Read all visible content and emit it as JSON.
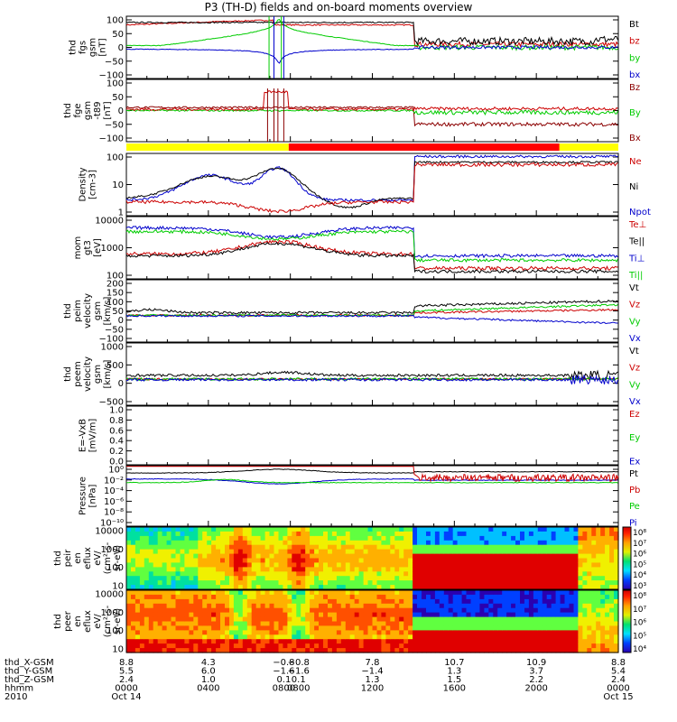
{
  "title": "P3 (TH-D) fields and on-board moments overview",
  "chart_data": [
    {
      "type": "line",
      "ylabel": [
        "thd",
        "fgs",
        "gsm",
        "[nT]"
      ],
      "yticks": [
        "100",
        "50",
        "0",
        "−50",
        "−100"
      ],
      "ylim": [
        -100,
        100
      ],
      "series": [
        {
          "name": "Bt",
          "color": "#000000"
        },
        {
          "name": "bz",
          "color": "#cc0000"
        },
        {
          "name": "by",
          "color": "#00cc00"
        },
        {
          "name": "bx",
          "color": "#0000cc"
        }
      ]
    },
    {
      "type": "line",
      "ylabel": [
        "thd",
        "fge",
        "gsm",
        "-t89",
        "[nT]"
      ],
      "yticks": [
        "100",
        "50",
        "0",
        "−50",
        "−100"
      ],
      "ylim": [
        -120,
        100
      ],
      "series": [
        {
          "name": "Bz",
          "color": "#8b0000"
        },
        {
          "name": "By",
          "color": "#00cc00"
        },
        {
          "name": "Bx",
          "color": "#8b0000"
        }
      ]
    },
    {
      "type": "line",
      "ylabel": [
        "Density",
        "[cm-3]"
      ],
      "yticks": [
        "100",
        "10",
        "1"
      ],
      "yscale": "log",
      "series": [
        {
          "name": "Ne",
          "color": "#cc0000"
        },
        {
          "name": "Ni",
          "color": "#000000"
        },
        {
          "name": "Npot",
          "color": "#0000cc"
        }
      ]
    },
    {
      "type": "line",
      "ylabel": [
        "mom",
        "gt3",
        "[eV]"
      ],
      "yticks": [
        "10000",
        "1000",
        "100"
      ],
      "yscale": "log",
      "series": [
        {
          "name": "Te⊥",
          "color": "#cc0000"
        },
        {
          "name": "Te||",
          "color": "#000000"
        },
        {
          "name": "Ti⊥",
          "color": "#0000cc"
        },
        {
          "name": "Ti||",
          "color": "#00cc00"
        }
      ]
    },
    {
      "type": "line",
      "ylabel": [
        "thd",
        "peim",
        "velocity",
        "gsm",
        "[km/s]"
      ],
      "yticks": [
        "200",
        "150",
        "100",
        "50",
        "0",
        "−50",
        "−100"
      ],
      "ylim": [
        -150,
        200
      ],
      "series": [
        {
          "name": "Vt",
          "color": "#000000"
        },
        {
          "name": "Vz",
          "color": "#cc0000"
        },
        {
          "name": "Vy",
          "color": "#00cc00"
        },
        {
          "name": "Vx",
          "color": "#0000cc"
        }
      ]
    },
    {
      "type": "line",
      "ylabel": [
        "thd",
        "peem",
        "velocity",
        "gsm",
        "[km/s]"
      ],
      "yticks": [
        "1000",
        "500",
        "0",
        "−500"
      ],
      "ylim": [
        -1000,
        1500
      ],
      "series": [
        {
          "name": "Vt",
          "color": "#000000"
        },
        {
          "name": "Vz",
          "color": "#cc0000"
        },
        {
          "name": "Vy",
          "color": "#00cc00"
        },
        {
          "name": "Vx",
          "color": "#0000cc"
        }
      ]
    },
    {
      "type": "line",
      "ylabel": [
        "E=-VxB",
        "[mV/m]"
      ],
      "yticks": [
        "1.0",
        "0.8",
        "0.6",
        "0.4",
        "0.2",
        "0.0"
      ],
      "ylim": [
        0,
        1
      ],
      "series": [
        {
          "name": "Ez",
          "color": "#cc0000"
        },
        {
          "name": "Ey",
          "color": "#00cc00"
        },
        {
          "name": "Ex",
          "color": "#0000cc"
        }
      ]
    },
    {
      "type": "line",
      "ylabel": [
        "Pressure",
        "[nPa]"
      ],
      "yticks": [
        "10⁰",
        "10⁻²",
        "10⁻⁴",
        "10⁻⁶",
        "10⁻⁸",
        "10⁻¹⁰"
      ],
      "yscale": "log",
      "series": [
        {
          "name": "Pt",
          "color": "#000000"
        },
        {
          "name": "Pb",
          "color": "#cc0000"
        },
        {
          "name": "Pe",
          "color": "#00cc00"
        },
        {
          "name": "Pi",
          "color": "#0000cc"
        }
      ]
    },
    {
      "type": "heatmap",
      "ylabel": [
        "thd",
        "peir",
        "en",
        "eflux",
        "eV/",
        "(cm²-s-",
        "sr-eV)"
      ],
      "yticks": [
        "10000",
        "1000",
        "100",
        "10"
      ],
      "yscale": "log",
      "colorbar": [
        "10⁸",
        "10⁷",
        "10⁶",
        "10⁵",
        "10⁴",
        "10³"
      ]
    },
    {
      "type": "heatmap",
      "ylabel": [
        "thd",
        "peer",
        "en",
        "eflux",
        "eV/",
        "(cm²-s-",
        "sr-eV)"
      ],
      "yticks": [
        "10000",
        "1000",
        "100",
        "10"
      ],
      "yscale": "log",
      "colorbar": [
        "10⁸",
        "10⁷",
        "10⁶",
        "10⁵",
        "10⁴"
      ]
    }
  ],
  "x_axis": {
    "rows": [
      {
        "label": "thd_X-GSM",
        "values": [
          "8.8",
          "4.3",
          "−0.8",
          "−0.8",
          "7.8",
          "10.7",
          "10.9",
          "8.8"
        ]
      },
      {
        "label": "thd_Y-GSM",
        "values": [
          "5.5",
          "6.0",
          "−1.6",
          "−1.6",
          "−1.4",
          "1.3",
          "3.7",
          "5.4"
        ]
      },
      {
        "label": "thd_Z-GSM",
        "values": [
          "2.4",
          "1.0",
          "0.1",
          "0.1",
          "1.3",
          "1.5",
          "2.2",
          "2.4"
        ]
      },
      {
        "label": "hhmm",
        "values": [
          "0000",
          "0400",
          "0800",
          "0800",
          "1200",
          "1600",
          "2000",
          "0000"
        ]
      },
      {
        "label": "2010",
        "values": [
          "Oct 14",
          "",
          "",
          "",
          "",
          "",
          "",
          "Oct 15"
        ]
      }
    ],
    "colors": {
      "bar_yellow": "#ffff00",
      "bar_red": "#ff0000"
    }
  }
}
